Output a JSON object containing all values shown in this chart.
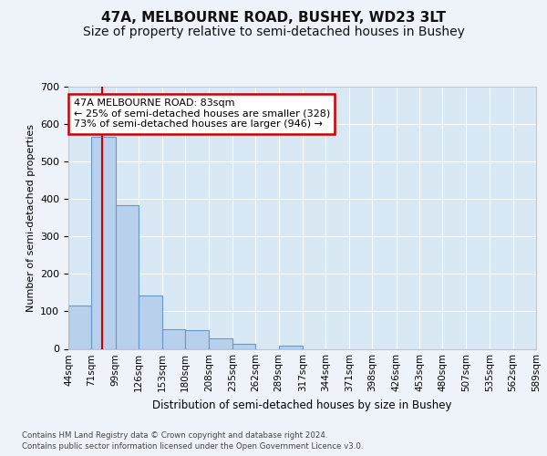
{
  "title": "47A, MELBOURNE ROAD, BUSHEY, WD23 3LT",
  "subtitle": "Size of property relative to semi-detached houses in Bushey",
  "xlabel": "Distribution of semi-detached houses by size in Bushey",
  "ylabel": "Number of semi-detached properties",
  "footnote1": "Contains HM Land Registry data © Crown copyright and database right 2024.",
  "footnote2": "Contains public sector information licensed under the Open Government Licence v3.0.",
  "annotation_line1": "47A MELBOURNE ROAD: 83sqm",
  "annotation_line2": "← 25% of semi-detached houses are smaller (328)",
  "annotation_line3": "73% of semi-detached houses are larger (946) →",
  "bin_edges": [
    44,
    71,
    99,
    126,
    153,
    180,
    208,
    235,
    262,
    289,
    317,
    344,
    371,
    398,
    426,
    453,
    480,
    507,
    535,
    562,
    589
  ],
  "bin_labels": [
    "44sqm",
    "71sqm",
    "99sqm",
    "126sqm",
    "153sqm",
    "180sqm",
    "208sqm",
    "235sqm",
    "262sqm",
    "289sqm",
    "317sqm",
    "344sqm",
    "371sqm",
    "398sqm",
    "426sqm",
    "453sqm",
    "480sqm",
    "507sqm",
    "535sqm",
    "562sqm",
    "589sqm"
  ],
  "bar_heights": [
    115,
    565,
    383,
    143,
    52,
    50,
    28,
    13,
    0,
    8,
    0,
    0,
    0,
    0,
    0,
    0,
    0,
    0,
    0,
    0
  ],
  "bar_color": "#b8d0eb",
  "bar_edge_color": "#6699cc",
  "vline_color": "#cc0000",
  "vline_x": 83,
  "ylim": [
    0,
    700
  ],
  "yticks": [
    0,
    100,
    200,
    300,
    400,
    500,
    600,
    700
  ],
  "axes_bg_color": "#d9e8f5",
  "fig_bg_color": "#eef3fa",
  "grid_color": "#ffffff",
  "title_fontsize": 11,
  "subtitle_fontsize": 10,
  "annotation_box_facecolor": "#ffffff",
  "annotation_box_edgecolor": "#cc0000"
}
